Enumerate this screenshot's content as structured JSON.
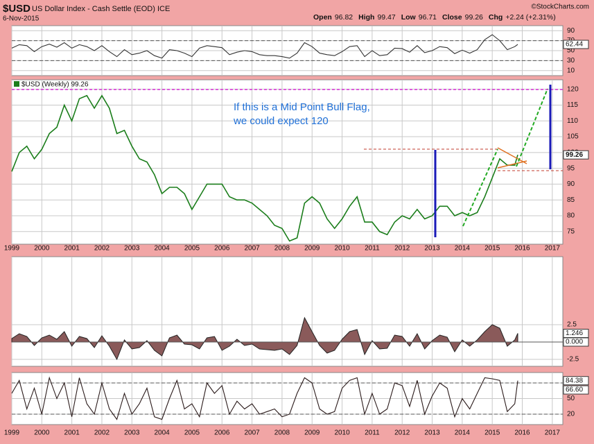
{
  "header": {
    "symbol": "$USD",
    "name": "US Dollar Index - Cash Settle (EOD) ICE",
    "date": "6-Nov-2015",
    "quote": [
      {
        "label": "Open",
        "value": "96.82"
      },
      {
        "label": "High",
        "value": "99.47"
      },
      {
        "label": "Low",
        "value": "96.71"
      },
      {
        "label": "Close",
        "value": "99.26"
      },
      {
        "label": "Chg",
        "value": "+2.24 (+2.31%)"
      }
    ],
    "credit": "©StockCharts.com"
  },
  "chart_data": [
    {
      "type": "line",
      "xlim": [
        1999,
        2017.35
      ],
      "ylim": [
        0,
        100
      ],
      "yticks": [
        10,
        30,
        50,
        70,
        90
      ],
      "reference_lines": [
        30,
        70
      ],
      "markers": [
        62.44
      ],
      "x": [
        1999,
        1999.25,
        1999.5,
        1999.75,
        2000,
        2000.25,
        2000.5,
        2000.75,
        2001,
        2001.25,
        2001.5,
        2001.75,
        2002,
        2002.25,
        2002.5,
        2002.75,
        2003,
        2003.25,
        2003.5,
        2003.75,
        2004,
        2004.25,
        2004.5,
        2004.75,
        2005,
        2005.25,
        2005.5,
        2005.75,
        2006,
        2006.25,
        2006.5,
        2006.75,
        2007,
        2007.25,
        2007.5,
        2007.75,
        2008,
        2008.25,
        2008.5,
        2008.75,
        2009,
        2009.25,
        2009.5,
        2009.75,
        2010,
        2010.25,
        2010.5,
        2010.75,
        2011,
        2011.25,
        2011.5,
        2011.75,
        2012,
        2012.25,
        2012.5,
        2012.75,
        2013,
        2013.25,
        2013.5,
        2013.75,
        2014,
        2014.25,
        2014.5,
        2014.75,
        2015,
        2015.25,
        2015.5,
        2015.75,
        2015.85
      ],
      "series": [
        {
          "color": "#333333",
          "values": [
            55,
            62,
            60,
            48,
            58,
            63,
            57,
            66,
            55,
            62,
            58,
            50,
            60,
            48,
            38,
            52,
            42,
            45,
            50,
            40,
            35,
            52,
            50,
            45,
            38,
            55,
            60,
            58,
            56,
            42,
            47,
            50,
            48,
            42,
            40,
            40,
            38,
            35,
            45,
            66,
            58,
            45,
            42,
            40,
            48,
            58,
            60,
            38,
            50,
            40,
            42,
            55,
            54,
            47,
            60,
            46,
            50,
            58,
            56,
            44,
            51,
            45,
            52,
            72,
            82,
            70,
            52,
            58,
            62.44
          ]
        }
      ]
    },
    {
      "type": "line",
      "xlim": [
        1999,
        2017.35
      ],
      "ylim": [
        71,
        123
      ],
      "yticks": [
        75,
        80,
        85,
        90,
        95,
        100,
        105,
        110,
        115,
        120
      ],
      "markers": [
        99.26
      ],
      "xticks": [
        1999,
        2000,
        2001,
        2002,
        2003,
        2004,
        2005,
        2006,
        2007,
        2008,
        2009,
        2010,
        2011,
        2012,
        2013,
        2014,
        2015,
        2016,
        2017
      ],
      "annotations": [
        "If this is a Mid Point Bull Flag,",
        "we could expect 120"
      ],
      "annotation_color": "#1f6fd6",
      "x": [
        1999,
        1999.25,
        1999.5,
        1999.75,
        2000,
        2000.25,
        2000.5,
        2000.75,
        2001,
        2001.25,
        2001.5,
        2001.75,
        2002,
        2002.25,
        2002.5,
        2002.75,
        2003,
        2003.25,
        2003.5,
        2003.75,
        2004,
        2004.25,
        2004.5,
        2004.75,
        2005,
        2005.25,
        2005.5,
        2005.75,
        2006,
        2006.25,
        2006.5,
        2006.75,
        2007,
        2007.25,
        2007.5,
        2007.75,
        2008,
        2008.25,
        2008.5,
        2008.75,
        2009,
        2009.25,
        2009.5,
        2009.75,
        2010,
        2010.25,
        2010.5,
        2010.75,
        2011,
        2011.25,
        2011.5,
        2011.75,
        2012,
        2012.25,
        2012.5,
        2012.75,
        2013,
        2013.25,
        2013.5,
        2013.75,
        2014,
        2014.25,
        2014.5,
        2014.75,
        2015,
        2015.25,
        2015.5,
        2015.75,
        2015.85
      ],
      "series": [
        {
          "name": "$USD (Weekly) 99.26",
          "color": "#1a7d1a",
          "values": [
            94,
            100,
            102,
            98,
            101,
            106,
            108,
            115,
            110,
            117,
            118,
            114,
            118,
            114,
            106,
            107,
            102,
            98,
            97,
            93,
            87,
            89,
            89,
            87,
            82,
            86,
            90,
            90,
            90,
            86,
            85,
            85,
            84,
            82,
            80,
            77,
            76,
            72,
            73,
            84,
            86,
            84,
            79,
            76,
            79,
            83,
            86,
            78,
            78,
            75,
            74,
            78,
            80,
            79,
            82,
            79,
            80,
            83,
            83,
            80,
            81,
            80,
            81,
            86,
            92,
            98,
            96,
            96,
            99.26
          ]
        }
      ]
    },
    {
      "type": "area",
      "xlim": [
        1999,
        2017.35
      ],
      "ylim": [
        -3.5,
        12.3
      ],
      "yticks": [
        2.5,
        -2.5
      ],
      "markers": [
        1.246,
        {
          "value": 0,
          "label": "0.000"
        }
      ],
      "x": [
        1999,
        1999.25,
        1999.5,
        1999.75,
        2000,
        2000.25,
        2000.5,
        2000.75,
        2001,
        2001.25,
        2001.5,
        2001.75,
        2002,
        2002.25,
        2002.5,
        2002.75,
        2003,
        2003.25,
        2003.5,
        2003.75,
        2004,
        2004.25,
        2004.5,
        2004.75,
        2005,
        2005.25,
        2005.5,
        2005.75,
        2006,
        2006.25,
        2006.5,
        2006.75,
        2007,
        2007.25,
        2007.5,
        2007.75,
        2008,
        2008.25,
        2008.5,
        2008.75,
        2009,
        2009.25,
        2009.5,
        2009.75,
        2010,
        2010.25,
        2010.5,
        2010.75,
        2011,
        2011.25,
        2011.5,
        2011.75,
        2012,
        2012.25,
        2012.5,
        2012.75,
        2013,
        2013.25,
        2013.5,
        2013.75,
        2014,
        2014.25,
        2014.5,
        2014.75,
        2015,
        2015.25,
        2015.5,
        2015.75,
        2015.85
      ],
      "series": [
        {
          "color": "#8a5a5a",
          "values": [
            0.5,
            1.2,
            0.8,
            -0.5,
            0.6,
            1.0,
            0.4,
            1.5,
            -0.6,
            0.8,
            0.5,
            -0.8,
            0.9,
            -0.6,
            -2.5,
            0.3,
            -1.0,
            -0.8,
            0.2,
            -1.2,
            -2.0,
            0.6,
            1.0,
            -0.3,
            -0.4,
            -1.0,
            0.6,
            0.8,
            -1.2,
            -0.6,
            0.4,
            -0.5,
            -0.3,
            -1.0,
            -1.1,
            -1.2,
            -1.0,
            -1.8,
            -0.5,
            3.5,
            1.5,
            -0.5,
            -1.6,
            -1.2,
            0.4,
            1.5,
            1.8,
            -1.8,
            0.2,
            -1.0,
            -0.9,
            1.0,
            0.8,
            -0.6,
            1.2,
            -1.0,
            0.2,
            1.0,
            0.7,
            -1.4,
            0.3,
            -0.6,
            0.3,
            1.5,
            2.5,
            2.0,
            -0.6,
            0.3,
            1.246
          ]
        }
      ]
    },
    {
      "type": "line",
      "xlim": [
        1999,
        2017.35
      ],
      "ylim": [
        0,
        100
      ],
      "yticks": [
        20,
        50,
        80
      ],
      "reference_lines": [
        20,
        80
      ],
      "markers": [
        84.38,
        {
          "value": 66.6,
          "label": "66.60"
        }
      ],
      "xticks": [
        1999,
        2000,
        2001,
        2002,
        2003,
        2004,
        2005,
        2006,
        2007,
        2008,
        2009,
        2010,
        2011,
        2012,
        2013,
        2014,
        2015,
        2016,
        2017
      ],
      "x": [
        1999,
        1999.25,
        1999.5,
        1999.75,
        2000,
        2000.25,
        2000.5,
        2000.75,
        2001,
        2001.25,
        2001.5,
        2001.75,
        2002,
        2002.25,
        2002.5,
        2002.75,
        2003,
        2003.25,
        2003.5,
        2003.75,
        2004,
        2004.25,
        2004.5,
        2004.75,
        2005,
        2005.25,
        2005.5,
        2005.75,
        2006,
        2006.25,
        2006.5,
        2006.75,
        2007,
        2007.25,
        2007.5,
        2007.75,
        2008,
        2008.25,
        2008.5,
        2008.75,
        2009,
        2009.25,
        2009.5,
        2009.75,
        2010,
        2010.25,
        2010.5,
        2010.75,
        2011,
        2011.25,
        2011.5,
        2011.75,
        2012,
        2012.25,
        2012.5,
        2012.75,
        2013,
        2013.25,
        2013.5,
        2013.75,
        2014,
        2014.25,
        2014.5,
        2014.75,
        2015,
        2015.25,
        2015.5,
        2015.75,
        2015.85
      ],
      "series": [
        {
          "color": "#2a1a1a",
          "values": [
            60,
            85,
            30,
            70,
            20,
            90,
            50,
            80,
            15,
            90,
            40,
            20,
            80,
            30,
            10,
            60,
            20,
            40,
            70,
            15,
            10,
            50,
            85,
            30,
            40,
            15,
            80,
            60,
            75,
            20,
            45,
            30,
            40,
            20,
            25,
            30,
            15,
            20,
            60,
            90,
            80,
            30,
            20,
            25,
            70,
            85,
            90,
            20,
            60,
            20,
            30,
            80,
            75,
            35,
            85,
            20,
            55,
            80,
            70,
            15,
            50,
            30,
            60,
            90,
            88,
            85,
            25,
            40,
            84.38
          ]
        }
      ]
    }
  ]
}
